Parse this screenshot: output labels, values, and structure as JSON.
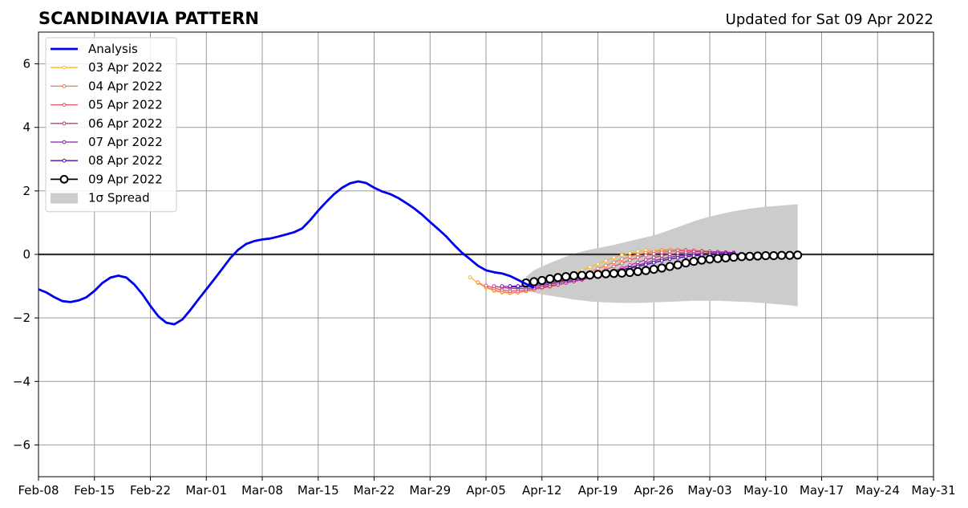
{
  "chart_data": {
    "type": "line",
    "title": "SCANDINAVIA PATTERN",
    "subtitle": "Updated for Sat 09 Apr 2022",
    "xlabel": "",
    "ylabel": "",
    "xlim": [
      "2022-02-08",
      "2022-05-31"
    ],
    "ylim": [
      -7,
      7
    ],
    "x_ticks": [
      {
        "date": "2022-02-08",
        "label": "Feb-08"
      },
      {
        "date": "2022-02-15",
        "label": "Feb-15"
      },
      {
        "date": "2022-02-22",
        "label": "Feb-22"
      },
      {
        "date": "2022-03-01",
        "label": "Mar-01"
      },
      {
        "date": "2022-03-08",
        "label": "Mar-08"
      },
      {
        "date": "2022-03-15",
        "label": "Mar-15"
      },
      {
        "date": "2022-03-22",
        "label": "Mar-22"
      },
      {
        "date": "2022-03-29",
        "label": "Mar-29"
      },
      {
        "date": "2022-04-05",
        "label": "Apr-05"
      },
      {
        "date": "2022-04-12",
        "label": "Apr-12"
      },
      {
        "date": "2022-04-19",
        "label": "Apr-19"
      },
      {
        "date": "2022-04-26",
        "label": "Apr-26"
      },
      {
        "date": "2022-05-03",
        "label": "May-03"
      },
      {
        "date": "2022-05-10",
        "label": "May-10"
      },
      {
        "date": "2022-05-17",
        "label": "May-17"
      },
      {
        "date": "2022-05-24",
        "label": "May-24"
      },
      {
        "date": "2022-05-31",
        "label": "May-31"
      }
    ],
    "y_ticks": [
      {
        "value": 6,
        "label": "6"
      },
      {
        "value": 4,
        "label": "4"
      },
      {
        "value": 2,
        "label": "2"
      },
      {
        "value": 0,
        "label": "0"
      },
      {
        "value": -2,
        "label": "−2"
      },
      {
        "value": -4,
        "label": "−4"
      },
      {
        "value": -6,
        "label": "−6"
      }
    ],
    "grid": true,
    "legend_position": "top-left",
    "zero_line": true,
    "analysis": {
      "name": "Analysis",
      "color": "#0000ee",
      "start": "2022-02-08",
      "values": [
        -1.1,
        -1.2,
        -1.35,
        -1.47,
        -1.5,
        -1.45,
        -1.35,
        -1.15,
        -0.9,
        -0.73,
        -0.67,
        -0.73,
        -0.95,
        -1.25,
        -1.62,
        -1.95,
        -2.15,
        -2.2,
        -2.05,
        -1.75,
        -1.42,
        -1.1,
        -0.78,
        -0.45,
        -0.12,
        0.15,
        0.33,
        0.42,
        0.47,
        0.5,
        0.56,
        0.63,
        0.7,
        0.82,
        1.08,
        1.38,
        1.65,
        1.9,
        2.1,
        2.24,
        2.3,
        2.25,
        2.1,
        1.98,
        1.9,
        1.78,
        1.62,
        1.45,
        1.25,
        1.02,
        0.8,
        0.57,
        0.3,
        0.05,
        -0.15,
        -0.36,
        -0.5,
        -0.56,
        -0.6,
        -0.68,
        -0.8,
        -0.93,
        -1.05
      ]
    },
    "forecasts": [
      {
        "name": "03 Apr 2022",
        "color": "#fcb72f",
        "start": "2022-04-03",
        "values": [
          -0.72,
          -0.9,
          -1.05,
          -1.15,
          -1.2,
          -1.22,
          -1.2,
          -1.15,
          -1.08,
          -1.0,
          -0.9,
          -0.8,
          -0.7,
          -0.6,
          -0.5,
          -0.4,
          -0.3,
          -0.2,
          -0.1,
          -0.02,
          0.04,
          0.09,
          0.12,
          0.14,
          0.15,
          0.15,
          0.14,
          0.12,
          0.1,
          0.07,
          0.05,
          0.03,
          0.02,
          0.01
        ]
      },
      {
        "name": "04 Apr 2022",
        "color": "#f57d48",
        "start": "2022-04-04",
        "values": [
          -0.88,
          -1.02,
          -1.12,
          -1.18,
          -1.2,
          -1.2,
          -1.16,
          -1.1,
          -1.03,
          -0.96,
          -0.88,
          -0.8,
          -0.72,
          -0.64,
          -0.55,
          -0.45,
          -0.35,
          -0.25,
          -0.15,
          -0.07,
          0.0,
          0.05,
          0.09,
          0.12,
          0.14,
          0.15,
          0.14,
          0.12,
          0.1,
          0.08,
          0.06,
          0.04,
          0.03
        ]
      },
      {
        "name": "05 Apr 2022",
        "color": "#e0566a",
        "start": "2022-04-05",
        "values": [
          -0.98,
          -1.06,
          -1.12,
          -1.15,
          -1.15,
          -1.13,
          -1.1,
          -1.06,
          -1.02,
          -0.96,
          -0.9,
          -0.83,
          -0.75,
          -0.67,
          -0.58,
          -0.48,
          -0.38,
          -0.28,
          -0.18,
          -0.1,
          -0.03,
          0.02,
          0.06,
          0.09,
          0.11,
          0.12,
          0.12,
          0.11,
          0.09,
          0.07,
          0.05,
          0.04
        ]
      },
      {
        "name": "06 Apr 2022",
        "color": "#bd3786",
        "start": "2022-04-06",
        "values": [
          -1.0,
          -1.04,
          -1.07,
          -1.08,
          -1.08,
          -1.06,
          -1.03,
          -0.99,
          -0.95,
          -0.9,
          -0.85,
          -0.8,
          -0.74,
          -0.67,
          -0.6,
          -0.52,
          -0.43,
          -0.34,
          -0.25,
          -0.17,
          -0.1,
          -0.04,
          0.0,
          0.04,
          0.06,
          0.08,
          0.09,
          0.09,
          0.08,
          0.07,
          0.06
        ]
      },
      {
        "name": "07 Apr 2022",
        "color": "#8b20a4",
        "start": "2022-04-07",
        "values": [
          -1.0,
          -1.02,
          -1.03,
          -1.02,
          -1.0,
          -0.97,
          -0.93,
          -0.89,
          -0.85,
          -0.81,
          -0.77,
          -0.72,
          -0.67,
          -0.61,
          -0.55,
          -0.48,
          -0.41,
          -0.34,
          -0.27,
          -0.2,
          -0.14,
          -0.09,
          -0.05,
          -0.02,
          0.01,
          0.03,
          0.04,
          0.05,
          0.05,
          0.05
        ]
      },
      {
        "name": "08 Apr 2022",
        "color": "#4e0aa6",
        "start": "2022-04-08",
        "values": [
          -1.0,
          -1.0,
          -0.98,
          -0.95,
          -0.92,
          -0.88,
          -0.84,
          -0.8,
          -0.76,
          -0.72,
          -0.68,
          -0.64,
          -0.6,
          -0.55,
          -0.5,
          -0.44,
          -0.38,
          -0.32,
          -0.26,
          -0.2,
          -0.15,
          -0.11,
          -0.07,
          -0.04,
          -0.02,
          0.0,
          0.01,
          0.02,
          0.02
        ]
      },
      {
        "name": "09 Apr 2022",
        "color": "#000000",
        "start": "2022-04-10",
        "values": [
          -0.9,
          -0.86,
          -0.82,
          -0.77,
          -0.73,
          -0.7,
          -0.67,
          -0.66,
          -0.65,
          -0.63,
          -0.61,
          -0.6,
          -0.59,
          -0.57,
          -0.54,
          -0.51,
          -0.47,
          -0.43,
          -0.38,
          -0.33,
          -0.27,
          -0.22,
          -0.18,
          -0.15,
          -0.13,
          -0.11,
          -0.09,
          -0.07,
          -0.06,
          -0.05,
          -0.04,
          -0.04,
          -0.03,
          -0.03,
          -0.02
        ]
      }
    ],
    "spread": {
      "name": "1σ Spread",
      "color": "#cccccc",
      "start": "2022-04-10",
      "upper": [
        -0.7,
        -0.5,
        -0.38,
        -0.27,
        -0.17,
        -0.07,
        0.02,
        0.09,
        0.15,
        0.2,
        0.25,
        0.3,
        0.36,
        0.42,
        0.48,
        0.54,
        0.6,
        0.68,
        0.77,
        0.86,
        0.95,
        1.04,
        1.12,
        1.19,
        1.25,
        1.31,
        1.36,
        1.4,
        1.44,
        1.47,
        1.5,
        1.52,
        1.54,
        1.56,
        1.58
      ],
      "lower": [
        -1.15,
        -1.2,
        -1.26,
        -1.3,
        -1.34,
        -1.38,
        -1.42,
        -1.45,
        -1.48,
        -1.5,
        -1.51,
        -1.52,
        -1.53,
        -1.53,
        -1.53,
        -1.52,
        -1.51,
        -1.5,
        -1.49,
        -1.48,
        -1.47,
        -1.46,
        -1.46,
        -1.46,
        -1.46,
        -1.47,
        -1.48,
        -1.49,
        -1.5,
        -1.52,
        -1.54,
        -1.56,
        -1.58,
        -1.6,
        -1.64
      ]
    }
  }
}
